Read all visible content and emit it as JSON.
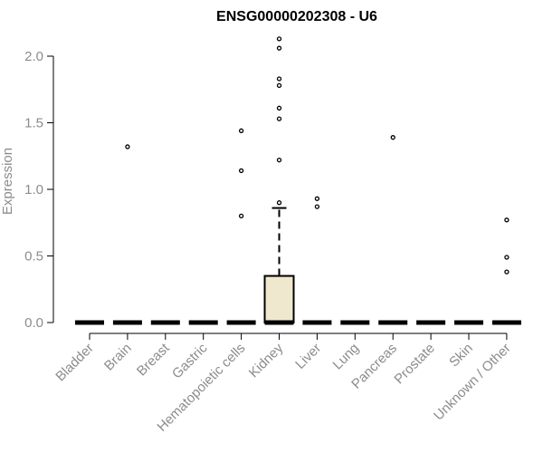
{
  "chart_data": {
    "type": "boxplot",
    "title": "ENSG00000202308 - U6",
    "xlabel": "",
    "ylabel": "Expression",
    "ylim": [
      0,
      2.15
    ],
    "yticks": [
      0.0,
      0.5,
      1.0,
      1.5,
      2.0
    ],
    "ytick_labels": [
      "0.0",
      "0.5",
      "1.0",
      "1.5",
      "2.0"
    ],
    "grid": false,
    "box_fill": "#efe8cf",
    "categories": [
      "Bladder",
      "Brain",
      "Breast",
      "Gastric",
      "Hematopoietic cells",
      "Kidney",
      "Liver",
      "Lung",
      "Pancreas",
      "Prostate",
      "Skin",
      "Unknown / Other"
    ],
    "boxes": [
      {
        "q1": 0,
        "median": 0,
        "q3": 0,
        "whisker_low": 0,
        "whisker_high": 0,
        "outliers": []
      },
      {
        "q1": 0,
        "median": 0,
        "q3": 0,
        "whisker_low": 0,
        "whisker_high": 0,
        "outliers": [
          1.32
        ]
      },
      {
        "q1": 0,
        "median": 0,
        "q3": 0,
        "whisker_low": 0,
        "whisker_high": 0,
        "outliers": []
      },
      {
        "q1": 0,
        "median": 0,
        "q3": 0,
        "whisker_low": 0,
        "whisker_high": 0,
        "outliers": []
      },
      {
        "q1": 0,
        "median": 0,
        "q3": 0,
        "whisker_low": 0,
        "whisker_high": 0,
        "outliers": [
          0.8,
          1.14,
          1.44
        ]
      },
      {
        "q1": 0,
        "median": 0,
        "q3": 0.35,
        "whisker_low": 0,
        "whisker_high": 0.86,
        "outliers": [
          0.9,
          1.22,
          1.53,
          1.61,
          1.78,
          1.83,
          2.06,
          2.13
        ]
      },
      {
        "q1": 0,
        "median": 0,
        "q3": 0,
        "whisker_low": 0,
        "whisker_high": 0,
        "outliers": [
          0.87,
          0.93
        ]
      },
      {
        "q1": 0,
        "median": 0,
        "q3": 0,
        "whisker_low": 0,
        "whisker_high": 0,
        "outliers": []
      },
      {
        "q1": 0,
        "median": 0,
        "q3": 0,
        "whisker_low": 0,
        "whisker_high": 0,
        "outliers": [
          1.39
        ]
      },
      {
        "q1": 0,
        "median": 0,
        "q3": 0,
        "whisker_low": 0,
        "whisker_high": 0,
        "outliers": []
      },
      {
        "q1": 0,
        "median": 0,
        "q3": 0,
        "whisker_low": 0,
        "whisker_high": 0,
        "outliers": []
      },
      {
        "q1": 0,
        "median": 0,
        "q3": 0,
        "whisker_low": 0,
        "whisker_high": 0,
        "outliers": [
          0.38,
          0.49,
          0.77
        ]
      }
    ]
  }
}
